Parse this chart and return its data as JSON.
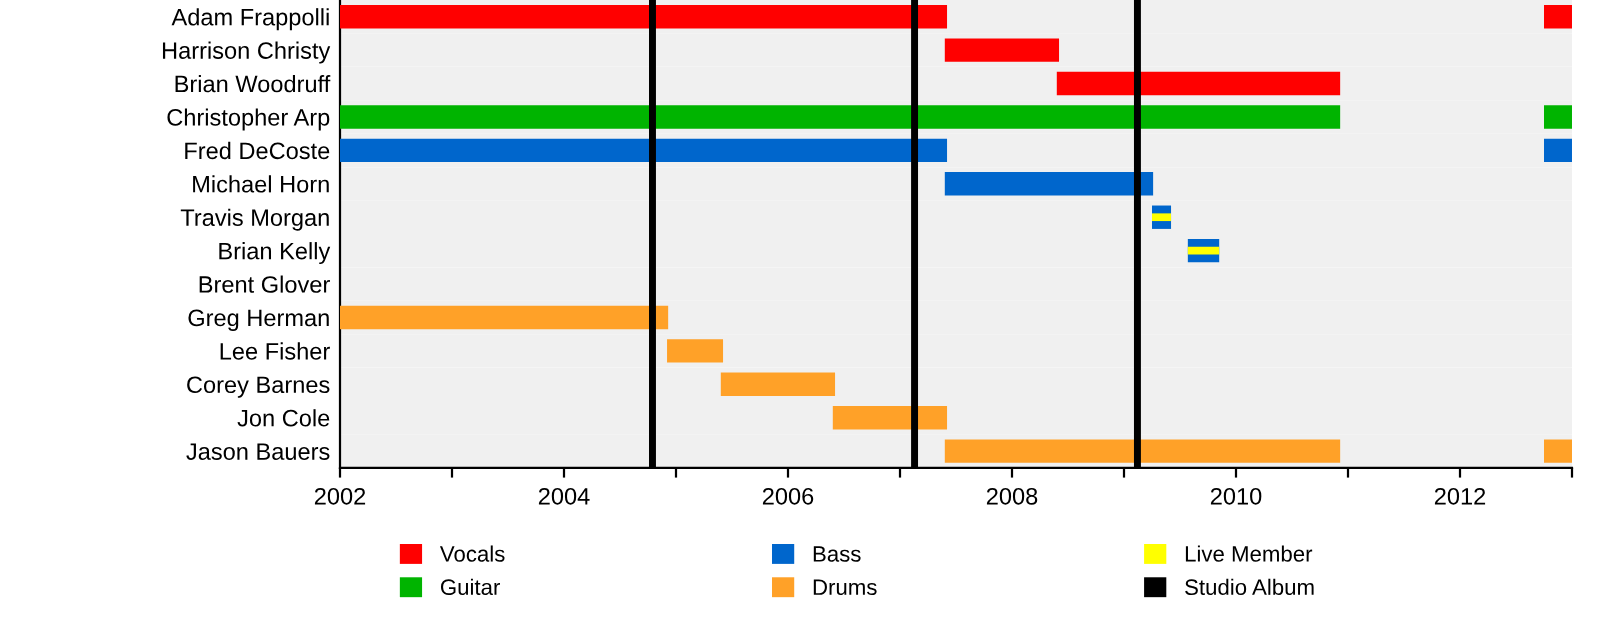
{
  "chart_data": {
    "type": "bar",
    "orientation": "horizontal",
    "categories": [
      "Adam Frappolli",
      "Harrison Christy",
      "Brian Woodruff",
      "Christopher Arp",
      "Fred DeCoste",
      "Michael Horn",
      "Travis Morgan",
      "Brian Kelly",
      "Brent Glover",
      "Greg Herman",
      "Lee Fisher",
      "Corey Barnes",
      "Jon Cole",
      "Jason Bauers"
    ],
    "series": [
      {
        "name": "Vocals",
        "color": "#ff0000",
        "base": [
          2002,
          2007.4,
          2008.4,
          null,
          null,
          null,
          null,
          null,
          null,
          null,
          null,
          null,
          null,
          null
        ],
        "values": [
          5.42,
          1.02,
          2.53,
          null,
          null,
          null,
          null,
          null,
          null,
          null,
          null,
          null,
          null,
          null
        ]
      },
      {
        "color": "#ff0000",
        "base": [
          2012.75,
          null,
          null,
          null,
          null,
          null,
          null,
          null,
          null,
          null,
          null,
          null,
          null,
          null
        ],
        "values": [
          0.25,
          null,
          null,
          null,
          null,
          null,
          null,
          null,
          null,
          null,
          null,
          null,
          null,
          null
        ]
      },
      {
        "name": "Guitar",
        "color": "#00b400",
        "base": [
          null,
          null,
          null,
          2002,
          null,
          null,
          null,
          null,
          null,
          null,
          null,
          null,
          null,
          null
        ],
        "values": [
          null,
          null,
          null,
          8.93,
          null,
          null,
          null,
          null,
          null,
          null,
          null,
          null,
          null,
          null
        ]
      },
      {
        "color": "#00b400",
        "base": [
          null,
          null,
          null,
          2012.75,
          null,
          null,
          null,
          null,
          null,
          null,
          null,
          null,
          null,
          null
        ],
        "values": [
          null,
          null,
          null,
          0.25,
          null,
          null,
          null,
          null,
          null,
          null,
          null,
          null,
          null,
          null
        ]
      },
      {
        "name": "Bass",
        "color": "#0066cc",
        "base": [
          null,
          null,
          null,
          null,
          2002,
          2007.4,
          2009.25,
          2009.57,
          null,
          null,
          null,
          null,
          null,
          null
        ],
        "values": [
          null,
          null,
          null,
          null,
          5.42,
          1.86,
          0.17,
          0.28,
          null,
          null,
          null,
          null,
          null,
          null
        ]
      },
      {
        "color": "#0066cc",
        "base": [
          null,
          null,
          null,
          null,
          2012.75,
          null,
          null,
          null,
          null,
          null,
          null,
          null,
          null,
          null
        ],
        "values": [
          null,
          null,
          null,
          null,
          0.25,
          null,
          null,
          null,
          null,
          null,
          null,
          null,
          null,
          null
        ]
      },
      {
        "name": "Drums",
        "color": "#ffa128",
        "base": [
          null,
          null,
          null,
          null,
          null,
          null,
          null,
          null,
          null,
          2002,
          2004.92,
          2005.4,
          2006.4,
          2007.4
        ],
        "values": [
          null,
          null,
          null,
          null,
          null,
          null,
          null,
          null,
          null,
          2.93,
          0.5,
          1.02,
          1.02,
          3.53
        ]
      },
      {
        "color": "#ffa128",
        "base": [
          null,
          null,
          null,
          null,
          null,
          null,
          null,
          null,
          null,
          null,
          null,
          null,
          null,
          2012.75
        ],
        "values": [
          null,
          null,
          null,
          null,
          null,
          null,
          null,
          null,
          null,
          null,
          null,
          null,
          null,
          0.25
        ]
      },
      {
        "name": "Live Member",
        "color": "#ffff00",
        "base": [
          null,
          null,
          null,
          null,
          null,
          null,
          2009.25,
          2009.57,
          null,
          null,
          null,
          null,
          null,
          null
        ],
        "values": [
          null,
          null,
          null,
          null,
          null,
          null,
          0.17,
          0.28,
          null,
          null,
          null,
          null,
          null,
          null
        ]
      }
    ],
    "ref_lines": [
      {
        "axis": "x",
        "value": 2004.79,
        "label": "Studio Album",
        "color": "#000000"
      },
      {
        "axis": "x",
        "value": 2007.13,
        "color": "#000000"
      },
      {
        "axis": "x",
        "value": 2009.12,
        "color": "#000000"
      }
    ],
    "xlim": [
      2002,
      2013
    ],
    "xticks": [
      2002,
      {
        "value": 2003,
        "label": null
      },
      2004,
      {
        "value": 2005,
        "label": null
      },
      2006,
      {
        "value": 2007,
        "label": null
      },
      2008,
      {
        "value": 2009,
        "label": null
      },
      2010,
      {
        "value": 2011,
        "label": null
      },
      2012,
      {
        "value": 2013,
        "label": null
      }
    ],
    "grid": "y",
    "legend": "bottom"
  }
}
